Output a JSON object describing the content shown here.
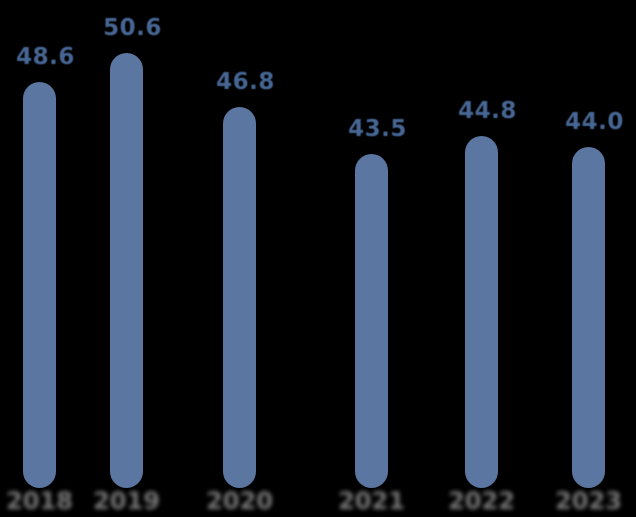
{
  "chart_data": {
    "type": "bar",
    "title": "",
    "xlabel": "",
    "ylabel": "",
    "categories": [
      "2018",
      "2019",
      "2020",
      "2021",
      "2022",
      "2023"
    ],
    "values": [
      48.6,
      50.6,
      46.8,
      43.5,
      44.8,
      44.0
    ],
    "value_labels": [
      "48.6",
      "50.6",
      "46.8",
      "43.5",
      "44.8",
      "44.0"
    ],
    "ylim": [
      20,
      52
    ],
    "grid": "off",
    "legend": "none",
    "colors": {
      "background": "#000000",
      "bar": "#5b76a0",
      "value_label": "#4d6fa0",
      "category_label": "#7f7f7f"
    }
  }
}
